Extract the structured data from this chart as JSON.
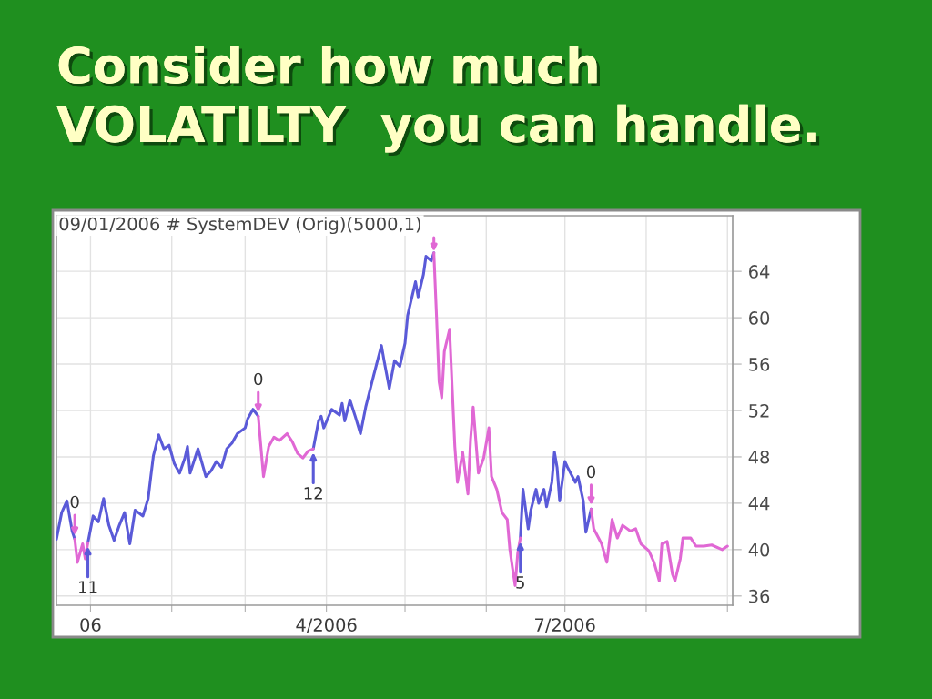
{
  "chart_data": {
    "type": "line",
    "title": "Consider how much\nVOLATILTY  you can handle.",
    "subtitle": "09/01/2006 # SystemDEV (Orig)(5000,1)",
    "x": [
      "2005-12-19",
      "2005-12-21",
      "2005-12-23",
      "2005-12-25",
      "2005-12-26",
      "2005-12-27",
      "2005-12-29",
      "2005-12-30",
      "2005-12-31",
      "2006-01-02",
      "2006-01-04",
      "2006-01-06",
      "2006-01-08",
      "2006-01-10",
      "2006-01-12",
      "2006-01-14",
      "2006-01-16",
      "2006-01-18",
      "2006-01-21",
      "2006-01-23",
      "2006-01-24",
      "2006-01-25",
      "2006-01-27",
      "2006-01-29",
      "2006-01-31",
      "2006-02-02",
      "2006-02-04",
      "2006-02-06",
      "2006-02-07",
      "2006-02-08",
      "2006-02-11",
      "2006-02-13",
      "2006-02-14",
      "2006-02-16",
      "2006-02-18",
      "2006-02-20",
      "2006-02-22",
      "2006-02-24",
      "2006-02-26",
      "2006-03-01",
      "2006-03-02",
      "2006-03-04",
      "2006-03-06",
      "2006-03-08",
      "2006-03-10",
      "2006-03-12",
      "2006-03-14",
      "2006-03-17",
      "2006-03-19",
      "2006-03-21",
      "2006-03-23",
      "2006-03-25",
      "2006-03-27",
      "2006-03-29",
      "2006-03-30",
      "2006-03-31",
      "2006-04-03",
      "2006-04-06",
      "2006-04-07",
      "2006-04-08",
      "2006-04-10",
      "2006-04-12",
      "2006-04-14",
      "2006-04-16",
      "2006-04-19",
      "2006-04-22",
      "2006-04-23",
      "2006-04-25",
      "2006-04-27",
      "2006-04-29",
      "2006-05-01",
      "2006-05-02",
      "2006-05-05",
      "2006-05-06",
      "2006-05-08",
      "2006-05-09",
      "2006-05-11",
      "2006-05-12",
      "2006-05-13",
      "2006-05-14",
      "2006-05-15",
      "2006-05-16",
      "2006-05-18",
      "2006-05-19",
      "2006-05-20",
      "2006-05-21",
      "2006-05-23",
      "2006-05-25",
      "2006-05-26",
      "2006-05-27",
      "2006-05-29",
      "2006-05-31",
      "2006-06-02",
      "2006-06-03",
      "2006-06-05",
      "2006-06-07",
      "2006-06-09",
      "2006-06-10",
      "2006-06-11",
      "2006-06-12",
      "2006-06-13",
      "2006-06-14",
      "2006-06-15",
      "2006-06-17",
      "2006-06-18",
      "2006-06-20",
      "2006-06-21",
      "2006-06-23",
      "2006-06-24",
      "2006-06-26",
      "2006-06-27",
      "2006-06-28",
      "2006-06-29",
      "2006-07-01",
      "2006-07-02",
      "2006-07-05",
      "2006-07-06",
      "2006-07-08",
      "2006-07-09",
      "2006-07-11",
      "2006-07-12",
      "2006-07-15",
      "2006-07-17",
      "2006-07-19",
      "2006-07-21",
      "2006-07-23",
      "2006-07-26",
      "2006-07-28",
      "2006-07-30",
      "2006-08-02",
      "2006-08-04",
      "2006-08-06",
      "2006-08-07",
      "2006-08-09",
      "2006-08-11",
      "2006-08-12",
      "2006-08-14",
      "2006-08-15",
      "2006-08-18",
      "2006-08-20",
      "2006-08-23",
      "2006-08-26",
      "2006-08-30",
      "2006-09-01"
    ],
    "series": [
      {
        "color": "#5a5ad8",
        "values": [
          40.9,
          43.2,
          44.2,
          41.6,
          40.9,
          null,
          null,
          null,
          40.6,
          42.9,
          42.4,
          44.4,
          42.1,
          40.8,
          42.1,
          43.2,
          40.5,
          43.4,
          42.9,
          44.4,
          46.3,
          48.1,
          49.9,
          48.7,
          49.0,
          47.4,
          46.6,
          47.9,
          48.9,
          46.6,
          48.7,
          47.1,
          46.3,
          46.8,
          47.6,
          47.1,
          48.7,
          49.2,
          50.0,
          50.5,
          51.3,
          52.1,
          51.5,
          null,
          null,
          null,
          null,
          null,
          null,
          null,
          null,
          null,
          48.7,
          51.1,
          51.5,
          50.5,
          52.1,
          51.6,
          52.6,
          51.1,
          52.9,
          51.5,
          50.0,
          52.3,
          55.0,
          57.6,
          56.3,
          53.9,
          56.3,
          55.8,
          57.8,
          60.2,
          63.1,
          61.8,
          63.7,
          65.3,
          64.9,
          65.6,
          null,
          null,
          null,
          null,
          null,
          null,
          null,
          null,
          null,
          null,
          null,
          null,
          null,
          null,
          null,
          null,
          null,
          null,
          null,
          null,
          null,
          null,
          null,
          41.0,
          45.2,
          41.8,
          43.4,
          45.2,
          44.0,
          45.2,
          43.7,
          45.8,
          48.4,
          47.1,
          44.2,
          47.6,
          47.1,
          45.8,
          46.3,
          44.2,
          41.5,
          43.5,
          null,
          null,
          null,
          null,
          null,
          null,
          null,
          null,
          null,
          null,
          null,
          null,
          null,
          null,
          null,
          null,
          null,
          null,
          null,
          null,
          null,
          null,
          null,
          null
        ]
      },
      {
        "color": "#e068d4",
        "values": [
          null,
          null,
          null,
          null,
          40.9,
          38.9,
          40.5,
          39.2,
          40.6,
          null,
          null,
          null,
          null,
          null,
          null,
          null,
          null,
          null,
          null,
          null,
          null,
          null,
          null,
          null,
          null,
          null,
          null,
          null,
          null,
          null,
          null,
          null,
          null,
          null,
          null,
          null,
          null,
          null,
          null,
          null,
          null,
          null,
          51.5,
          46.3,
          48.9,
          49.7,
          49.4,
          50.0,
          49.3,
          48.3,
          47.9,
          48.5,
          48.7,
          null,
          null,
          null,
          null,
          null,
          null,
          null,
          null,
          null,
          null,
          null,
          null,
          null,
          null,
          null,
          null,
          null,
          null,
          null,
          null,
          null,
          null,
          null,
          null,
          65.6,
          60.2,
          54.5,
          53.1,
          57.1,
          59.0,
          53.9,
          48.9,
          45.8,
          48.4,
          44.8,
          49.5,
          52.3,
          46.6,
          47.9,
          50.5,
          46.3,
          45.2,
          43.2,
          42.6,
          40.0,
          38.4,
          36.9,
          39.7,
          41.0,
          null,
          null,
          null,
          null,
          null,
          null,
          null,
          null,
          null,
          null,
          null,
          null,
          null,
          null,
          null,
          null,
          null,
          43.5,
          41.8,
          40.5,
          38.9,
          42.6,
          41.0,
          42.1,
          41.6,
          41.8,
          40.5,
          39.9,
          38.9,
          37.3,
          40.5,
          40.7,
          37.9,
          37.3,
          39.2,
          41.0,
          41.0,
          40.3,
          40.3,
          40.4,
          40.0,
          40.3
        ]
      }
    ],
    "annotations": [
      {
        "text": "0",
        "x": "2005-12-26",
        "y": 40.9
      },
      {
        "text": "11",
        "x": "2005-12-31",
        "y": 40.6
      },
      {
        "text": "0",
        "x": "2006-03-06",
        "y": 51.5
      },
      {
        "text": "12",
        "x": "2006-03-27",
        "y": 48.7
      },
      {
        "text": "5",
        "x": "2006-06-14",
        "y": 41.0
      },
      {
        "text": "0",
        "x": "2006-07-11",
        "y": 43.5
      }
    ],
    "xlim": [
      "2005-12-19",
      "2006-09-03"
    ],
    "xticks": [
      {
        "value": "2006-01",
        "label": "06"
      },
      {
        "value": "2006-02",
        "label": null
      },
      {
        "value": "2006-03",
        "label": null
      },
      {
        "value": "2006-04",
        "label": "4/2006"
      },
      {
        "value": "2006-05",
        "label": null
      },
      {
        "value": "2006-06",
        "label": null
      },
      {
        "value": "2006-07",
        "label": "7/2006"
      },
      {
        "value": "2006-08",
        "label": null
      },
      {
        "value": "2006-09",
        "label": null
      }
    ],
    "ylim": [
      35.2,
      68.8
    ],
    "yticks": [
      36,
      40,
      44,
      48,
      52,
      56,
      60,
      64
    ],
    "grid": true
  }
}
